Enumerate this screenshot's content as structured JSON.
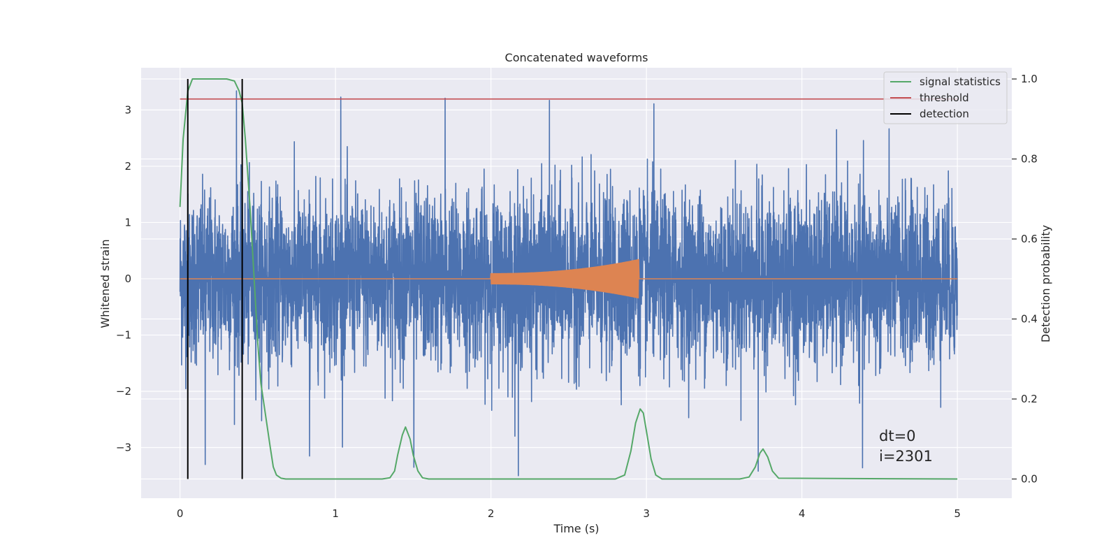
{
  "chart_data": {
    "type": "line",
    "title": "Concatenated waveforms",
    "xlabel": "Time (s)",
    "ylabel_left": "Whitened strain",
    "ylabel_right": "Detection probability",
    "xlim": [
      -0.25,
      5.35
    ],
    "ylim_left": [
      -3.9,
      3.75
    ],
    "ylim_right": [
      -0.048,
      1.028
    ],
    "x_ticks": [
      0,
      1,
      2,
      3,
      4,
      5
    ],
    "y_left_ticks": [
      -3,
      -2,
      -1,
      0,
      1,
      2,
      3
    ],
    "y_right_ticks": [
      0.0,
      0.2,
      0.4,
      0.6,
      0.8,
      1.0
    ],
    "x_tick_labels": [
      "0",
      "1",
      "2",
      "3",
      "4",
      "5"
    ],
    "y_left_tick_labels": [
      "−3",
      "−2",
      "−1",
      "0",
      "1",
      "2",
      "3"
    ],
    "y_right_tick_labels": [
      "0.0",
      "0.2",
      "0.4",
      "0.6",
      "0.8",
      "1.0"
    ],
    "grid": true,
    "legend_position": "top-right",
    "series": [
      {
        "name": "",
        "axis": "left",
        "color": "#4c72b0",
        "kind": "noise",
        "x_range": [
          0,
          5
        ],
        "typical_amplitude": 1.2,
        "peak_values": [
          3.34,
          3.23,
          3.21,
          3.17,
          3.11,
          -3.42,
          -3.36,
          -3.3,
          -3.15,
          -3.35,
          -3.5
        ]
      },
      {
        "name": "",
        "axis": "left",
        "color": "#dd8452",
        "kind": "chirp",
        "x_range": [
          0,
          5
        ],
        "chirp_start": 2.0,
        "chirp_end": 2.95,
        "amplitude_start": 0.1,
        "amplitude_end": 0.35
      },
      {
        "name": "signal statistics",
        "axis": "right",
        "color": "#55a868",
        "x": [
          0.0,
          0.02,
          0.05,
          0.08,
          0.1,
          0.15,
          0.2,
          0.25,
          0.3,
          0.35,
          0.38,
          0.4,
          0.42,
          0.45,
          0.48,
          0.5,
          0.52,
          0.55,
          0.58,
          0.6,
          0.62,
          0.65,
          0.68,
          0.7,
          1.3,
          1.35,
          1.38,
          1.4,
          1.43,
          1.45,
          1.48,
          1.5,
          1.53,
          1.56,
          1.6,
          2.8,
          2.86,
          2.9,
          2.93,
          2.96,
          2.98,
          3.0,
          3.03,
          3.06,
          3.1,
          3.6,
          3.66,
          3.7,
          3.73,
          3.75,
          3.78,
          3.81,
          3.85,
          5.0
        ],
        "y": [
          0.68,
          0.85,
          0.97,
          1.0,
          1.0,
          1.0,
          1.0,
          1.0,
          1.0,
          0.995,
          0.97,
          0.94,
          0.85,
          0.68,
          0.48,
          0.34,
          0.24,
          0.16,
          0.08,
          0.03,
          0.01,
          0.002,
          0.0,
          0.0,
          0.0,
          0.003,
          0.02,
          0.06,
          0.11,
          0.13,
          0.1,
          0.06,
          0.02,
          0.003,
          0.0,
          0.0,
          0.01,
          0.07,
          0.14,
          0.175,
          0.165,
          0.12,
          0.05,
          0.01,
          0.0,
          0.0,
          0.005,
          0.03,
          0.065,
          0.075,
          0.055,
          0.02,
          0.002,
          0.0
        ]
      },
      {
        "name": "threshold",
        "axis": "right",
        "color": "#c44e52",
        "value": 0.95,
        "x_range": [
          0,
          5
        ]
      },
      {
        "name": "detection",
        "axis": "right",
        "color": "#000000",
        "x_values": [
          0.05,
          0.4
        ],
        "y_range": [
          0,
          1
        ]
      }
    ],
    "annotations": [
      "dt=0",
      "i=2301"
    ]
  }
}
